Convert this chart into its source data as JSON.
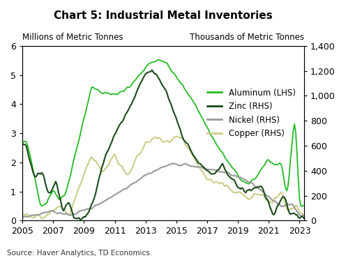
{
  "title": "Chart 5: Industrial Metal Inventories",
  "ylabel_left": "Millions of Metric Tonnes",
  "ylabel_right": "Thousands of Metric Tonnes",
  "source": "Source: Haver Analytics, TD Economics.",
  "ylim_left": [
    0,
    6
  ],
  "ylim_right": [
    0,
    1400
  ],
  "yticks_left": [
    0,
    1,
    2,
    3,
    4,
    5,
    6
  ],
  "yticks_right": [
    0,
    200,
    400,
    600,
    800,
    1000,
    1200,
    1400
  ],
  "xticks": [
    2005,
    2007,
    2009,
    2011,
    2013,
    2015,
    2017,
    2019,
    2021,
    2023
  ],
  "colors": {
    "aluminum": "#22bb22",
    "zinc": "#1a4a1a",
    "nickel": "#999999",
    "copper": "#cccc88"
  },
  "legend": [
    {
      "label": "Aluminum (LHS)",
      "color": "#22bb22"
    },
    {
      "label": "Zinc (RHS)",
      "color": "#1a4a1a"
    },
    {
      "label": "Nickel (RHS)",
      "color": "#999999"
    },
    {
      "label": "Copper (RHS)",
      "color": "#cccc88"
    }
  ],
  "background_color": "#ffffff",
  "title_fontsize": 11,
  "axis_fontsize": 9,
  "legend_fontsize": 8.5
}
